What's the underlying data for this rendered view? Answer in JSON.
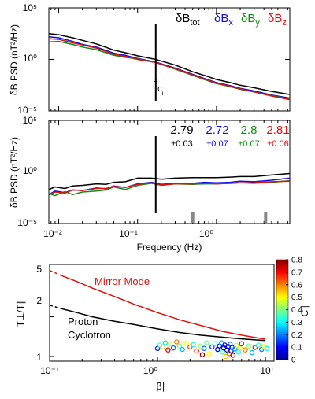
{
  "colors": {
    "tot": "#000000",
    "x": "#1010e0",
    "y": "#138a13",
    "z": "#e01010"
  },
  "legend": {
    "tot": "δB",
    "tot_sub": "tot",
    "x": "δB",
    "x_sub": "x",
    "y": "δB",
    "y_sub": "y",
    "z": "δB",
    "z_sub": "z"
  },
  "annotations": {
    "fci": "f",
    "fci_sub": "c",
    "fci_subsub": "i",
    "slopes": [
      "2.79",
      "2.72",
      "2.8",
      "2.81"
    ],
    "errors": [
      "±0.03",
      "±0.07",
      "±0.07",
      "±0.06"
    ],
    "mirror_mode": "Mirror Mode",
    "proton_cyclotron_1": "Proton",
    "proton_cyclotron_2": "Cyclotron"
  },
  "chart_data": [
    {
      "type": "line",
      "ylabel": "δB PSD (nT²/Hz)",
      "xscale": "log",
      "yscale": "log",
      "xlim": [
        0.0075,
        8.5
      ],
      "ylim": [
        1e-05,
        100000
      ],
      "xticks": [
        0.01,
        0.1,
        1
      ],
      "xtick_labels": [
        "",
        "",
        ""
      ],
      "yticks": [
        1e-05,
        1,
        100000
      ],
      "ytick_labels": [
        "10⁻⁵",
        "10⁰",
        "10⁵"
      ],
      "vline_x": 0.17,
      "x": [
        0.0075,
        0.01,
        0.015,
        0.02,
        0.03,
        0.05,
        0.07,
        0.1,
        0.17,
        0.3,
        0.5,
        0.7,
        1,
        1.5,
        2,
        3,
        5,
        8.5
      ],
      "series": [
        {
          "name": "δBtot",
          "color": "#000000",
          "log10_values": [
            2.5,
            2.4,
            2.1,
            1.85,
            1.5,
            0.9,
            0.65,
            0.35,
            0.0,
            -0.55,
            -1.2,
            -1.55,
            -1.95,
            -2.25,
            -2.5,
            -2.75,
            -3.1,
            -3.4
          ]
        },
        {
          "name": "δBx",
          "color": "#1010e0",
          "log10_values": [
            2.2,
            2.1,
            1.75,
            1.45,
            1.2,
            0.6,
            0.4,
            0.1,
            -0.25,
            -0.85,
            -1.45,
            -1.85,
            -2.25,
            -2.55,
            -2.8,
            -3.05,
            -3.45,
            -3.75
          ]
        },
        {
          "name": "δBy",
          "color": "#138a13",
          "log10_values": [
            1.7,
            1.75,
            1.45,
            1.2,
            0.95,
            0.4,
            0.2,
            0.05,
            -0.3,
            -0.95,
            -1.55,
            -1.95,
            -2.35,
            -2.65,
            -2.9,
            -3.15,
            -3.5,
            -3.85
          ]
        },
        {
          "name": "δBz",
          "color": "#e01010",
          "log10_values": [
            2.0,
            1.95,
            1.6,
            1.4,
            1.1,
            0.5,
            0.3,
            0.0,
            -0.3,
            -0.9,
            -1.5,
            -1.9,
            -2.3,
            -2.6,
            -2.85,
            -3.15,
            -3.55,
            -3.9
          ]
        }
      ]
    },
    {
      "type": "line",
      "ylabel": "δB PSD (nT²/Hz)",
      "xlabel": "Frequency (Hz)",
      "xscale": "log",
      "yscale": "log",
      "xlim": [
        0.0075,
        8.5
      ],
      "ylim": [
        1e-05,
        100000
      ],
      "xticks": [
        0.01,
        0.1,
        1
      ],
      "xtick_labels": [
        "10⁻²",
        "10⁻¹",
        "10⁰"
      ],
      "yticks": [
        1e-05,
        1,
        100000
      ],
      "ytick_labels": [
        "10⁻⁵",
        "10⁰",
        "10⁵"
      ],
      "vline_x": 0.17,
      "gray_marks_x": [
        0.5,
        4.2
      ],
      "x": [
        0.0075,
        0.009,
        0.012,
        0.015,
        0.02,
        0.03,
        0.04,
        0.05,
        0.07,
        0.1,
        0.15,
        0.2,
        0.3,
        0.5,
        0.7,
        1,
        1.5,
        2,
        3,
        5,
        8.5
      ],
      "series": [
        {
          "name": "δBtot",
          "color": "#000000",
          "log10_values": [
            -1.7,
            -1.45,
            -1.6,
            -1.35,
            -1.3,
            -1.15,
            -1.2,
            -1.0,
            -0.95,
            -0.6,
            -0.6,
            -0.7,
            -0.6,
            -0.55,
            -0.55,
            -0.55,
            -0.5,
            -0.45,
            -0.45,
            -0.3,
            -0.15
          ]
        },
        {
          "name": "δBx",
          "color": "#1010e0",
          "log10_values": [
            -2.2,
            -1.85,
            -2.0,
            -1.75,
            -1.8,
            -1.55,
            -1.65,
            -1.35,
            -1.5,
            -1.15,
            -1.0,
            -1.2,
            -1.1,
            -1.1,
            -1.0,
            -1.05,
            -1.0,
            -0.9,
            -0.95,
            -0.8,
            -0.6
          ]
        },
        {
          "name": "δBy",
          "color": "#138a13",
          "log10_values": [
            -2.1,
            -2.3,
            -1.9,
            -2.2,
            -1.95,
            -1.85,
            -1.75,
            -1.45,
            -1.7,
            -1.3,
            -1.1,
            -1.3,
            -1.15,
            -1.2,
            -1.15,
            -1.15,
            -1.1,
            -1.05,
            -1.1,
            -1.0,
            -0.85
          ]
        },
        {
          "name": "δBz",
          "color": "#e01010",
          "log10_values": [
            -2.2,
            -1.95,
            -2.05,
            -1.75,
            -1.8,
            -1.6,
            -1.6,
            -1.4,
            -1.5,
            -1.2,
            -1.05,
            -1.25,
            -1.15,
            -1.15,
            -1.1,
            -1.15,
            -1.1,
            -1.05,
            -1.05,
            -0.95,
            -0.9
          ]
        }
      ]
    },
    {
      "type": "scatter",
      "xlabel": "β∥",
      "ylabel": "T⊥/T∥",
      "colorbar_label": "C∥",
      "xscale": "log",
      "yscale": "log",
      "xlim": [
        0.1,
        12
      ],
      "ylim": [
        0.92,
        5
      ],
      "xticks": [
        0.1,
        1,
        10
      ],
      "xtick_labels": [
        "10⁻¹",
        "10⁰",
        "10¹"
      ],
      "yticks": [
        1,
        2,
        5
      ],
      "ytick_labels": [
        "1",
        "2",
        "5"
      ],
      "clim": [
        0,
        0.8
      ],
      "cticks": [
        0,
        0.1,
        0.2,
        0.3,
        0.4,
        0.5,
        0.6,
        0.7,
        0.8
      ],
      "ctick_labels": [
        "0",
        "0.1",
        "0.2",
        "0.3",
        "0.4",
        "0.5",
        "0.6",
        "0.7",
        "0.8"
      ],
      "curves": [
        {
          "name": "Mirror Mode",
          "color": "#e01010",
          "x": [
            0.1,
            0.13,
            0.18,
            0.25,
            0.4,
            0.6,
            1,
            1.6,
            2.5,
            4,
            6,
            10
          ],
          "y": [
            4.5,
            4.1,
            3.7,
            3.3,
            2.85,
            2.5,
            2.15,
            1.9,
            1.72,
            1.55,
            1.45,
            1.35
          ],
          "dashed_below_x": 0.13
        },
        {
          "name": "Proton Cyclotron",
          "color": "#000000",
          "x": [
            0.1,
            0.13,
            0.18,
            0.25,
            0.4,
            0.6,
            1,
            1.6,
            2.5,
            4,
            6,
            10
          ],
          "y": [
            2.45,
            2.3,
            2.15,
            2.0,
            1.85,
            1.75,
            1.62,
            1.52,
            1.45,
            1.4,
            1.36,
            1.32
          ],
          "dashed_below_x": 0.13
        }
      ],
      "points": [
        {
          "x": 1.0,
          "y": 1.15,
          "c": 0.12
        },
        {
          "x": 1.05,
          "y": 1.22,
          "c": 0.35
        },
        {
          "x": 1.12,
          "y": 1.18,
          "c": 0.55
        },
        {
          "x": 1.18,
          "y": 1.27,
          "c": 0.28
        },
        {
          "x": 1.25,
          "y": 1.12,
          "c": 0.72
        },
        {
          "x": 1.3,
          "y": 1.24,
          "c": 0.45
        },
        {
          "x": 1.4,
          "y": 1.16,
          "c": 0.18
        },
        {
          "x": 1.5,
          "y": 1.29,
          "c": 0.6
        },
        {
          "x": 1.6,
          "y": 1.2,
          "c": 0.4
        },
        {
          "x": 1.7,
          "y": 1.13,
          "c": 0.25
        },
        {
          "x": 1.85,
          "y": 1.26,
          "c": 0.5
        },
        {
          "x": 2.0,
          "y": 1.18,
          "c": 0.65
        },
        {
          "x": 2.15,
          "y": 1.23,
          "c": 0.33
        },
        {
          "x": 2.3,
          "y": 1.1,
          "c": 0.7
        },
        {
          "x": 2.5,
          "y": 1.2,
          "c": 0.42
        },
        {
          "x": 2.6,
          "y": 1.03,
          "c": 0.78
        },
        {
          "x": 2.7,
          "y": 1.15,
          "c": 0.2
        },
        {
          "x": 2.85,
          "y": 1.27,
          "c": 0.38
        },
        {
          "x": 3.0,
          "y": 1.05,
          "c": 0.5
        },
        {
          "x": 3.2,
          "y": 1.18,
          "c": 0.15
        },
        {
          "x": 3.4,
          "y": 1.25,
          "c": 0.3
        },
        {
          "x": 3.6,
          "y": 1.13,
          "c": 0.05
        },
        {
          "x": 3.75,
          "y": 1.2,
          "c": 0.08
        },
        {
          "x": 3.9,
          "y": 1.27,
          "c": 0.25
        },
        {
          "x": 4.0,
          "y": 1.08,
          "c": 0.35
        },
        {
          "x": 4.1,
          "y": 1.16,
          "c": 0.02
        },
        {
          "x": 4.2,
          "y": 1.22,
          "c": 0.1
        },
        {
          "x": 4.3,
          "y": 1.0,
          "c": 0.55
        },
        {
          "x": 4.4,
          "y": 1.12,
          "c": 0.04
        },
        {
          "x": 4.5,
          "y": 1.19,
          "c": 0.06
        },
        {
          "x": 4.6,
          "y": 1.05,
          "c": 0.62
        },
        {
          "x": 4.7,
          "y": 1.24,
          "c": 0.18
        },
        {
          "x": 4.8,
          "y": 1.1,
          "c": 0.03
        },
        {
          "x": 4.9,
          "y": 1.17,
          "c": 0.12
        },
        {
          "x": 5.0,
          "y": 1.02,
          "c": 0.75
        },
        {
          "x": 5.2,
          "y": 1.14,
          "c": 0.22
        },
        {
          "x": 5.4,
          "y": 1.21,
          "c": 0.45
        },
        {
          "x": 5.6,
          "y": 1.08,
          "c": 0.3
        },
        {
          "x": 5.8,
          "y": 1.16,
          "c": 0.52
        },
        {
          "x": 6.0,
          "y": 1.25,
          "c": 0.15
        },
        {
          "x": 6.5,
          "y": 1.12,
          "c": 0.6
        },
        {
          "x": 7.0,
          "y": 1.2,
          "c": 0.4
        },
        {
          "x": 7.5,
          "y": 1.07,
          "c": 0.25
        },
        {
          "x": 8.0,
          "y": 1.17,
          "c": 0.68
        },
        {
          "x": 8.6,
          "y": 1.22,
          "c": 0.35
        },
        {
          "x": 9.2,
          "y": 1.13,
          "c": 0.2
        },
        {
          "x": 9.8,
          "y": 1.19,
          "c": 0.5
        },
        {
          "x": 10.3,
          "y": 1.15,
          "c": 0.3
        }
      ]
    }
  ]
}
